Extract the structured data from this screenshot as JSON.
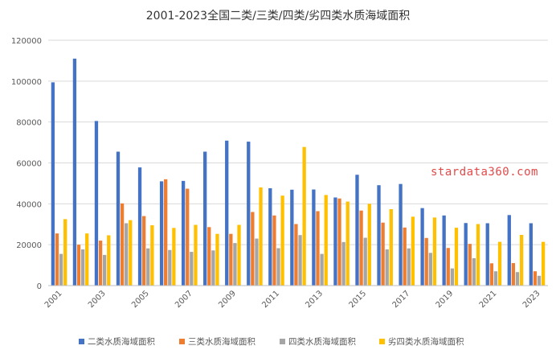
{
  "chart_data": {
    "type": "bar",
    "title": "2001-2023全国二类/三类/四类/劣四类水质海域面积",
    "xlabel": "",
    "ylabel": "",
    "ylim": [
      0,
      120000
    ],
    "yticks": [
      "0",
      "20000",
      "40000",
      "60000",
      "80000",
      "100000",
      "120000"
    ],
    "categories": [
      "2001",
      "2002",
      "2003",
      "2004",
      "2005",
      "2006",
      "2007",
      "2008",
      "2009",
      "2010",
      "2011",
      "2012",
      "2013",
      "2014",
      "2015",
      "2016",
      "2017",
      "2018",
      "2019",
      "2020",
      "2021",
      "2022",
      "2023"
    ],
    "xtick_labels": [
      "2001",
      "",
      "2003",
      "",
      "2005",
      "",
      "2007",
      "",
      "2009",
      "",
      "2011",
      "",
      "2013",
      "",
      "2015",
      "",
      "2017",
      "",
      "2019",
      "",
      "2021",
      "",
      "2023"
    ],
    "grid": true,
    "legend_position": "bottom",
    "series": [
      {
        "name": "二类水质海域面积",
        "color": "#4472C4",
        "values": [
          99400,
          111000,
          80500,
          65500,
          57800,
          51000,
          51200,
          65500,
          70900,
          70400,
          47600,
          46900,
          47000,
          43100,
          54200,
          49100,
          49700,
          37900,
          34300,
          30600,
          30500,
          34500,
          30500
        ]
      },
      {
        "name": "三类水质海域面积",
        "color": "#ED7D31",
        "values": [
          25500,
          20000,
          22000,
          40200,
          34000,
          52000,
          47400,
          28600,
          25300,
          36000,
          34300,
          30100,
          36400,
          42600,
          36700,
          30800,
          28400,
          23300,
          18400,
          20400,
          10900,
          11000,
          7000
        ]
      },
      {
        "name": "四类水质海域面积",
        "color": "#A5A5A5",
        "values": [
          15500,
          17700,
          15000,
          30500,
          18200,
          17400,
          16500,
          17200,
          20800,
          23000,
          18300,
          24700,
          15500,
          21300,
          23400,
          17700,
          18200,
          16000,
          8400,
          13400,
          7000,
          6600,
          4800
        ]
      },
      {
        "name": "劣四类水质海域面积",
        "color": "#FFC000",
        "values": [
          32500,
          25500,
          24600,
          32000,
          29500,
          28200,
          29700,
          25300,
          29700,
          48000,
          44000,
          67800,
          44300,
          41100,
          40000,
          37400,
          33700,
          33300,
          28300,
          30100,
          21400,
          24800,
          21400
        ]
      }
    ]
  },
  "watermark": {
    "text": "stardata360.com",
    "color": "#E24A4A"
  }
}
